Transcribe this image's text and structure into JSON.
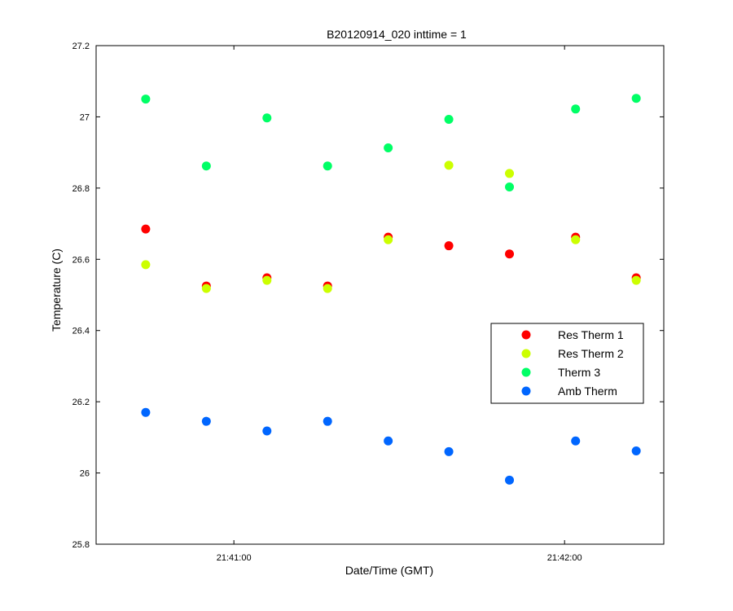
{
  "chart_data": {
    "type": "scatter",
    "title": "B20120914_020 inttime = 1",
    "xlabel": "Date/Time (GMT)",
    "ylabel": "Temperature (C)",
    "xlim": [
      "21:40:35",
      "21:42:18"
    ],
    "ylim": [
      25.8,
      27.2
    ],
    "yticks": [
      25.8,
      26,
      26.2,
      26.4,
      26.6,
      26.8,
      27,
      27.2
    ],
    "ytick_labels": [
      "25.8",
      "26",
      "26.2",
      "26.4",
      "26.6",
      "26.8",
      "27",
      "27.2"
    ],
    "xticks": [
      "21:41:00",
      "21:42:00"
    ],
    "xtick_labels": [
      "21:41:00",
      "21:42:00"
    ],
    "x": [
      "21:40:44",
      "21:40:55",
      "21:41:06",
      "21:41:17",
      "21:41:28",
      "21:41:39",
      "21:41:50",
      "21:42:02",
      "21:42:13"
    ],
    "grid": false,
    "legend_position": "right",
    "series": [
      {
        "name": "Res Therm 1",
        "color": "#ff0000",
        "values": [
          26.685,
          26.525,
          26.548,
          26.525,
          26.662,
          26.638,
          26.615,
          26.662,
          26.548
        ]
      },
      {
        "name": "Res Therm 2",
        "color": "#ccff00",
        "values": [
          26.585,
          26.518,
          26.541,
          26.518,
          26.655,
          26.864,
          26.841,
          26.655,
          26.541
        ]
      },
      {
        "name": "Therm 3",
        "color": "#00ff66",
        "values": [
          27.05,
          26.862,
          26.997,
          26.862,
          26.913,
          26.993,
          26.803,
          27.022,
          27.052
        ]
      },
      {
        "name": "Amb Therm",
        "color": "#0066ff",
        "values": [
          26.17,
          26.145,
          26.118,
          26.145,
          26.09,
          26.06,
          25.98,
          26.09,
          26.062
        ]
      }
    ]
  }
}
